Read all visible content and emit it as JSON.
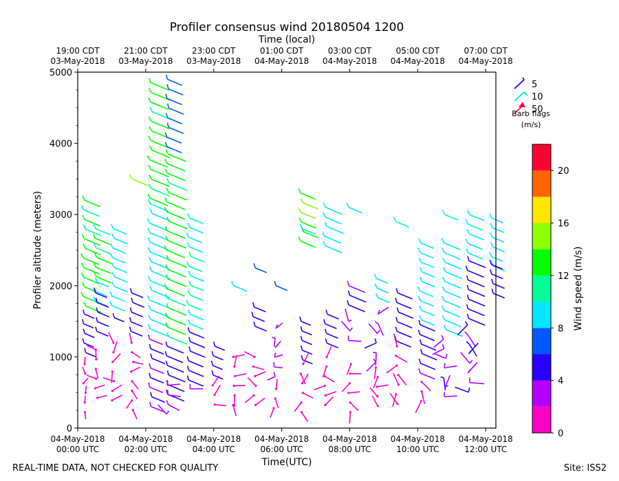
{
  "chart_data": {
    "type": "wind_barb_profile",
    "title": "Profiler consensus wind 20180504 1200",
    "xlabel_bottom": "Time(UTC)",
    "xlabel_top": "Time (local)",
    "ylabel": "Profiler altitude (meters)",
    "ylim": [
      0,
      5000
    ],
    "y_ticks": [
      "0",
      "1000",
      "2000",
      "3000",
      "4000",
      "5000"
    ],
    "x_range_hours": [
      0,
      12.3
    ],
    "bottom_ticks": [
      {
        "hour": 0,
        "line1": "04-May-2018",
        "line2": "00:00 UTC"
      },
      {
        "hour": 2,
        "line1": "04-May-2018",
        "line2": "02:00 UTC"
      },
      {
        "hour": 4,
        "line1": "04-May-2018",
        "line2": "04:00 UTC"
      },
      {
        "hour": 6,
        "line1": "04-May-2018",
        "line2": "06:00 UTC"
      },
      {
        "hour": 8,
        "line1": "04-May-2018",
        "line2": "08:00 UTC"
      },
      {
        "hour": 10,
        "line1": "04-May-2018",
        "line2": "10:00 UTC"
      },
      {
        "hour": 12,
        "line1": "04-May-2018",
        "line2": "12:00 UTC"
      }
    ],
    "top_ticks": [
      {
        "hour": 0,
        "line1": "19:00 CDT",
        "line2": "03-May-2018"
      },
      {
        "hour": 2,
        "line1": "21:00 CDT",
        "line2": "03-May-2018"
      },
      {
        "hour": 4,
        "line1": "23:00 CDT",
        "line2": "03-May-2018"
      },
      {
        "hour": 6,
        "line1": "01:00 CDT",
        "line2": "04-May-2018"
      },
      {
        "hour": 8,
        "line1": "03:00 CDT",
        "line2": "04-May-2018"
      },
      {
        "hour": 10,
        "line1": "05:00 CDT",
        "line2": "04-May-2018"
      },
      {
        "hour": 12,
        "line1": "07:00 CDT",
        "line2": "04-May-2018"
      }
    ],
    "barb_legend": {
      "entries": [
        {
          "label": "5",
          "color": "#1a00ff"
        },
        {
          "label": "10",
          "color": "#00f5a0"
        },
        {
          "label": "50",
          "color": "#ff0040"
        }
      ],
      "caption_line1": "Barb flags",
      "caption_line2": "(m/s)"
    },
    "colorbar": {
      "label": "Wind speed (m/s)",
      "min": 0,
      "max": 22,
      "tick_labels": [
        "0",
        "4",
        "8",
        "12",
        "16",
        "20"
      ],
      "tick_values": [
        0,
        4,
        8,
        12,
        16,
        20
      ],
      "bounds": [
        0,
        2,
        4,
        6,
        8,
        10,
        12,
        14,
        16,
        18,
        20,
        22
      ],
      "colors": [
        "#ff00c8",
        "#b400ff",
        "#2800ff",
        "#005aff",
        "#00e6ff",
        "#00ff96",
        "#00ff00",
        "#8cff00",
        "#ffe600",
        "#ff6400",
        "#ff0032"
      ]
    },
    "columns": [
      {
        "hour": 0.2,
        "series": [
          {
            "ytop": 3200,
            "ybot": 1650,
            "speed": 12.5,
            "len": 0.95
          },
          {
            "ytop": 1600,
            "ybot": 950,
            "speed": 5,
            "len": 0.6
          },
          {
            "ytop": 900,
            "ybot": 200,
            "speed": 0.5,
            "len": 0.5
          }
        ]
      },
      {
        "hour": 0.55,
        "series": [
          {
            "ytop": 2800,
            "ybot": 2100,
            "speed": 12.5,
            "len": 0.9
          },
          {
            "ytop": 2050,
            "ybot": 1650,
            "speed": 9,
            "len": 0.7
          },
          {
            "ytop": 1900,
            "ybot": 1300,
            "speed": 4.5,
            "len": 0.7
          },
          {
            "ytop": 1100,
            "ybot": 300,
            "speed": 1.2,
            "len": 0.7
          }
        ]
      },
      {
        "hour": 1.05,
        "series": [
          {
            "ytop": 2800,
            "ybot": 1600,
            "speed": 9,
            "len": 0.8
          },
          {
            "ytop": 1550,
            "ybot": 1250,
            "speed": 5,
            "len": 0.6
          },
          {
            "ytop": 1200,
            "ybot": 300,
            "speed": 1,
            "len": 0.8
          }
        ]
      },
      {
        "hour": 1.6,
        "series": [
          {
            "ytop": 3500,
            "ybot": 3350,
            "speed": 15,
            "len": 1
          },
          {
            "ytop": 1900,
            "ybot": 1300,
            "speed": 4.5,
            "len": 0.7
          },
          {
            "ytop": 1200,
            "ybot": 200,
            "speed": 1,
            "len": 0.7
          }
        ]
      },
      {
        "hour": 2.15,
        "series": [
          {
            "ytop": 4850,
            "ybot": 3200,
            "speed": 12.5,
            "len": 1.1
          },
          {
            "ytop": 3150,
            "ybot": 1300,
            "speed": 9,
            "len": 1.1
          },
          {
            "ytop": 1250,
            "ybot": 300,
            "speed": 4.5,
            "len": 0.8
          }
        ]
      },
      {
        "hour": 2.65,
        "series": [
          {
            "ytop": 4900,
            "ybot": 3900,
            "speed": 7,
            "len": 0.9
          },
          {
            "ytop": 3850,
            "ybot": 1200,
            "speed": 12.5,
            "len": 1.1
          },
          {
            "ytop": 1150,
            "ybot": 400,
            "speed": 5,
            "len": 1
          },
          {
            "ytop": 600,
            "ybot": 150,
            "speed": 3,
            "len": 0.9
          }
        ]
      },
      {
        "hour": 3.3,
        "series": [
          {
            "ytop": 2950,
            "ybot": 1400,
            "speed": 10,
            "len": 0.8
          },
          {
            "ytop": 1350,
            "ybot": 600,
            "speed": 5,
            "len": 0.9
          },
          {
            "ytop": 550,
            "ybot": 250,
            "speed": 3,
            "len": 0.9
          }
        ]
      },
      {
        "hour": 4.0,
        "series": [
          {
            "ytop": 1150,
            "ybot": 700,
            "speed": 5,
            "len": 0.6
          },
          {
            "ytop": 600,
            "ybot": 250,
            "speed": 1,
            "len": 0.8
          }
        ]
      },
      {
        "hour": 4.6,
        "series": [
          {
            "ytop": 2000,
            "ybot": 1800,
            "speed": 9,
            "len": 0.8
          },
          {
            "ytop": 1000,
            "ybot": 200,
            "speed": 1.2,
            "len": 0.8
          }
        ]
      },
      {
        "hour": 5.2,
        "series": [
          {
            "ytop": 2250,
            "ybot": 2000,
            "speed": 7,
            "len": 0.7
          },
          {
            "ytop": 1700,
            "ybot": 1350,
            "speed": 5,
            "len": 0.7
          },
          {
            "ytop": 1000,
            "ybot": 200,
            "speed": 1,
            "len": 0.8
          }
        ]
      },
      {
        "hour": 5.8,
        "series": [
          {
            "ytop": 2000,
            "ybot": 1800,
            "speed": 7,
            "len": 0.7
          },
          {
            "ytop": 1400,
            "ybot": 600,
            "speed": 3,
            "len": 0.6
          },
          {
            "ytop": 550,
            "ybot": 150,
            "speed": 1,
            "len": 0.7
          }
        ]
      },
      {
        "hour": 6.6,
        "series": [
          {
            "ytop": 3300,
            "ybot": 2600,
            "speed": 14,
            "len": 0.9
          },
          {
            "ytop": 2800,
            "ybot": 2500,
            "speed": 9,
            "len": 0.8
          },
          {
            "ytop": 1500,
            "ybot": 900,
            "speed": 5,
            "len": 0.6
          },
          {
            "ytop": 900,
            "ybot": 150,
            "speed": 1.2,
            "len": 0.8
          }
        ]
      },
      {
        "hour": 7.3,
        "series": [
          {
            "ytop": 3100,
            "ybot": 2500,
            "speed": 9,
            "len": 1
          },
          {
            "ytop": 1600,
            "ybot": 1100,
            "speed": 5,
            "len": 0.7
          },
          {
            "ytop": 1000,
            "ybot": 200,
            "speed": 1,
            "len": 0.8
          }
        ]
      },
      {
        "hour": 8.0,
        "series": [
          {
            "ytop": 3100,
            "ybot": 2800,
            "speed": 9,
            "len": 0.8
          },
          {
            "ytop": 2000,
            "ybot": 1600,
            "speed": 4.5,
            "len": 1
          },
          {
            "ytop": 1500,
            "ybot": 1100,
            "speed": 3,
            "len": 0.9
          },
          {
            "ytop": 900,
            "ybot": 200,
            "speed": 1.2,
            "len": 0.8
          }
        ]
      },
      {
        "hour": 8.8,
        "series": [
          {
            "ytop": 2100,
            "ybot": 1700,
            "speed": 9,
            "len": 0.7
          },
          {
            "ytop": 1600,
            "ybot": 900,
            "speed": 3.5,
            "len": 0.9
          },
          {
            "ytop": 850,
            "ybot": 200,
            "speed": 1,
            "len": 0.8
          }
        ]
      },
      {
        "hour": 9.4,
        "series": [
          {
            "ytop": 2900,
            "ybot": 2700,
            "speed": 11,
            "len": 0.8
          },
          {
            "ytop": 1900,
            "ybot": 1200,
            "speed": 5,
            "len": 0.9
          },
          {
            "ytop": 1150,
            "ybot": 250,
            "speed": 1,
            "len": 0.9
          }
        ]
      },
      {
        "hour": 10.1,
        "series": [
          {
            "ytop": 2600,
            "ybot": 1500,
            "speed": 9,
            "len": 0.8
          },
          {
            "ytop": 1450,
            "ybot": 700,
            "speed": 4.5,
            "len": 0.9
          },
          {
            "ytop": 650,
            "ybot": 250,
            "speed": 1.2,
            "len": 0.9
          }
        ]
      },
      {
        "hour": 10.8,
        "series": [
          {
            "ytop": 3000,
            "ybot": 2700,
            "speed": 11,
            "len": 0.8
          },
          {
            "ytop": 2600,
            "ybot": 1300,
            "speed": 9,
            "len": 1
          },
          {
            "ytop": 1250,
            "ybot": 400,
            "speed": 3.5,
            "len": 0.9
          }
        ]
      },
      {
        "hour": 11.5,
        "series": [
          {
            "ytop": 3000,
            "ybot": 2400,
            "speed": 9,
            "len": 0.9
          },
          {
            "ytop": 2350,
            "ybot": 1500,
            "speed": 5,
            "len": 1
          },
          {
            "ytop": 1450,
            "ybot": 400,
            "speed": 3.5,
            "len": 1
          }
        ]
      },
      {
        "hour": 12.2,
        "series": [
          {
            "ytop": 2950,
            "ybot": 2200,
            "speed": 9,
            "len": 0.7
          },
          {
            "ytop": 2300,
            "ybot": 1800,
            "speed": 5,
            "len": 0.7
          }
        ]
      }
    ]
  },
  "footer": {
    "disclaimer": "REAL-TIME DATA, NOT CHECKED FOR QUALITY",
    "site": "Site: ISS2"
  }
}
